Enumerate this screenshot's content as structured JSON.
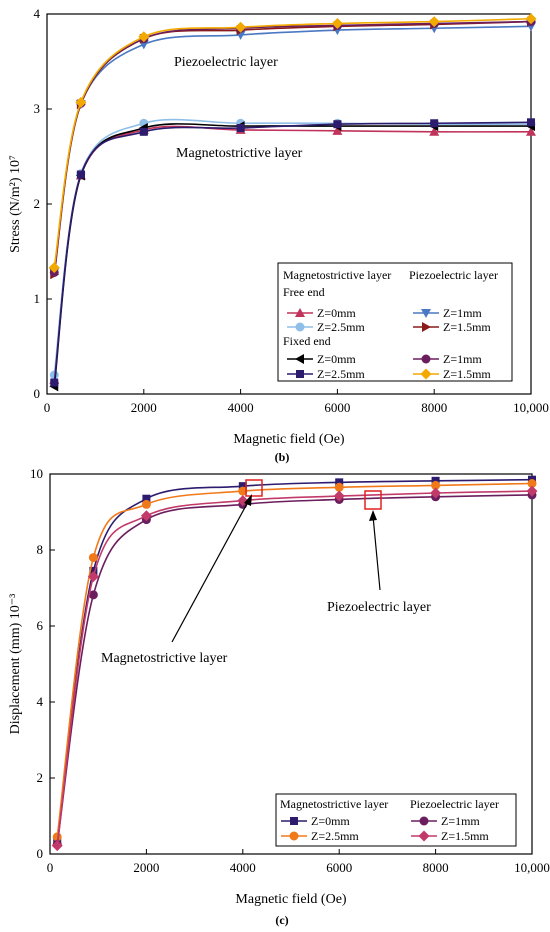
{
  "chart_data": [
    {
      "type": "line",
      "panel_label": "(b)",
      "xlabel": "Magnetic field (Oe)",
      "ylabel": "Stress (N/m²) 10⁷",
      "xlim": [
        0,
        10000
      ],
      "ylim": [
        0,
        4
      ],
      "xticks": [
        0,
        2000,
        4000,
        6000,
        8000,
        10000
      ],
      "xticklabels": [
        "0",
        "2000",
        "4000",
        "6000",
        "8000",
        "10,000"
      ],
      "yticks": [
        0,
        1,
        2,
        3,
        4
      ],
      "yticklabels": [
        "0",
        "1",
        "2",
        "3",
        "4"
      ],
      "grid": false,
      "legend_position": "bottom-right",
      "legend_headers": [
        "Magnetostrictive layer",
        "Piezoelectric layer"
      ],
      "legend_groups": [
        "Free end",
        "Fixed end"
      ],
      "annotations": [
        "Piezoelectric layer",
        "Magnetostrictive layer"
      ],
      "x": [
        150,
        700,
        2000,
        4000,
        6000,
        8000,
        10000
      ],
      "series": [
        {
          "name": "Z=0mm",
          "group": "Free end",
          "layer": "Magnetostrictive layer",
          "color": "#c0335a",
          "marker": "triangle-up",
          "values": [
            0.15,
            2.3,
            2.78,
            2.78,
            2.77,
            2.76,
            2.76
          ]
        },
        {
          "name": "Z=2.5mm",
          "group": "Free end",
          "layer": "Magnetostrictive layer",
          "color": "#8fbfe8",
          "marker": "circle",
          "values": [
            0.2,
            2.32,
            2.85,
            2.85,
            2.85,
            2.84,
            2.84
          ]
        },
        {
          "name": "Z=0mm",
          "group": "Fixed end",
          "layer": "Magnetostrictive layer",
          "color": "#000000",
          "marker": "triangle-left",
          "values": [
            0.08,
            2.3,
            2.8,
            2.82,
            2.82,
            2.82,
            2.82
          ]
        },
        {
          "name": "Z=2.5mm",
          "group": "Fixed end",
          "layer": "Magnetostrictive layer",
          "color": "#2d1b6e",
          "marker": "square",
          "values": [
            0.12,
            2.31,
            2.76,
            2.8,
            2.84,
            2.85,
            2.86
          ]
        },
        {
          "name": "Z=1mm",
          "group": "Free end",
          "layer": "Piezoelectric layer",
          "color": "#4a78c2",
          "marker": "triangle-down",
          "values": [
            1.28,
            3.05,
            3.68,
            3.78,
            3.83,
            3.85,
            3.87
          ]
        },
        {
          "name": "Z=1.5mm",
          "group": "Free end",
          "layer": "Piezoelectric layer",
          "color": "#8b1a1a",
          "marker": "triangle-right",
          "values": [
            1.26,
            3.05,
            3.74,
            3.83,
            3.87,
            3.89,
            3.92
          ]
        },
        {
          "name": "Z=1mm",
          "group": "Fixed end",
          "layer": "Piezoelectric layer",
          "color": "#6b1e5e",
          "marker": "circle",
          "values": [
            1.28,
            3.06,
            3.74,
            3.85,
            3.88,
            3.9,
            3.92
          ]
        },
        {
          "name": "Z=1.5mm",
          "group": "Fixed end",
          "layer": "Piezoelectric layer",
          "color": "#f2a900",
          "marker": "diamond",
          "values": [
            1.33,
            3.07,
            3.76,
            3.86,
            3.9,
            3.92,
            3.95
          ]
        }
      ]
    },
    {
      "type": "line",
      "panel_label": "(c)",
      "xlabel": "Magnetic field (Oe)",
      "ylabel": "Displacement (mm) 10⁻³",
      "xlim": [
        0,
        10000
      ],
      "ylim": [
        0,
        10
      ],
      "xticks": [
        0,
        2000,
        4000,
        6000,
        8000,
        10000
      ],
      "xticklabels": [
        "0",
        "2000",
        "4000",
        "6000",
        "8000",
        "10,000"
      ],
      "yticks": [
        0,
        2,
        4,
        6,
        8,
        10
      ],
      "yticklabels": [
        "0",
        "2",
        "4",
        "6",
        "8",
        "10"
      ],
      "grid": false,
      "legend_position": "bottom-right",
      "legend_headers": [
        "Magnetostrictive layer",
        "Piezoelectric layer"
      ],
      "annotations": [
        "Magnetostrictive layer",
        "Piezoelectric layer"
      ],
      "x": [
        150,
        900,
        2000,
        4000,
        6000,
        8000,
        10000
      ],
      "series": [
        {
          "name": "Z=0mm",
          "layer": "Magnetostrictive layer",
          "color": "#2d1b6e",
          "marker": "square",
          "values": [
            0.35,
            7.45,
            9.35,
            9.68,
            9.78,
            9.82,
            9.85
          ]
        },
        {
          "name": "Z=2.5mm",
          "layer": "Magnetostrictive layer",
          "color": "#f07a1a",
          "marker": "circle",
          "values": [
            0.45,
            7.8,
            9.2,
            9.55,
            9.65,
            9.7,
            9.75
          ]
        },
        {
          "name": "Z=1mm",
          "layer": "Piezoelectric layer",
          "color": "#6b1e5e",
          "marker": "circle",
          "values": [
            0.25,
            6.82,
            8.8,
            9.2,
            9.33,
            9.4,
            9.45
          ]
        },
        {
          "name": "Z=1.5mm",
          "layer": "Piezoelectric layer",
          "color": "#c23a6a",
          "marker": "diamond",
          "values": [
            0.22,
            7.3,
            8.9,
            9.3,
            9.42,
            9.5,
            9.55
          ]
        }
      ]
    }
  ]
}
